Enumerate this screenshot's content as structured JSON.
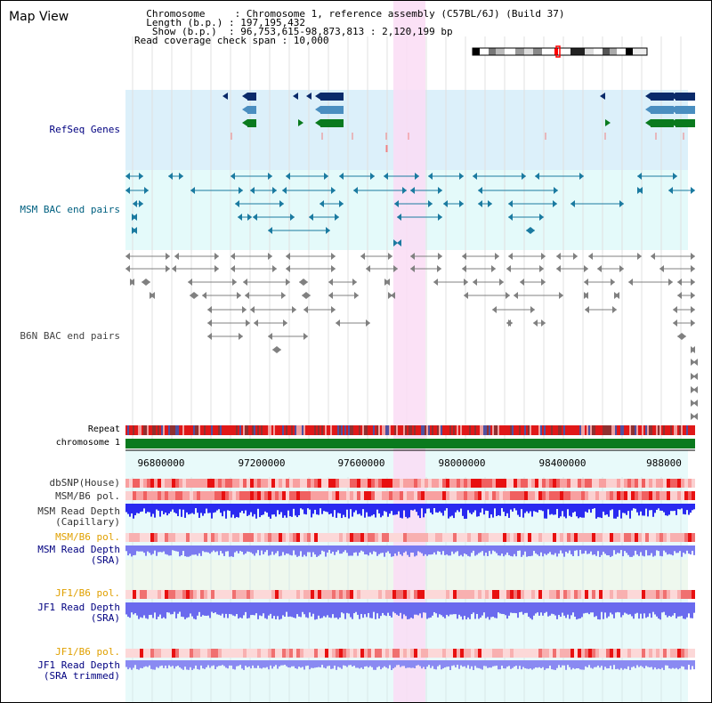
{
  "view": {
    "title": "Map View",
    "info_lines": [
      "  Chromosome     : Chromosome 1, reference assembly (C57BL/6J) (Build 37)",
      "  Length (b.p.) : 197,195,432",
      "   Show (b.p.)  : 96,753,615-98,873,813 : 2,120,199 bp",
      "Read coverage check span : 10,000"
    ]
  },
  "tracks": {
    "refseq": "RefSeq Genes",
    "msm_bac": "MSM BAC end pairs",
    "b6n_bac": "B6N BAC end pairs",
    "repeat": "Repeat",
    "chromosome": "chromosome 1",
    "dbsnp": "dbSNP(House)",
    "msm_b6_pol_1": "MSM/B6 pol.",
    "msm_depth_cap_1": "MSM Read Depth",
    "msm_depth_cap_2": "(Capillary)",
    "msm_b6_pol_2": "MSM/B6 pol.",
    "msm_depth_sra_1": "MSM Read Depth",
    "msm_depth_sra_2": "(SRA)",
    "jf1_b6_pol_1": "JF1/B6 pol.",
    "jf1_depth_sra_1": "JF1 Read Depth",
    "jf1_depth_sra_2": "(SRA)",
    "jf1_b6_pol_2": "JF1/B6 pol.",
    "jf1_depth_trim_1": "JF1 Read Depth",
    "jf1_depth_trim_2": "(SRA trimmed)"
  },
  "axis": {
    "ticks": [
      "96800000",
      "97200000",
      "97600000",
      "98000000",
      "98400000",
      "988000"
    ]
  },
  "colors": {
    "refseq_bg": "#dcf0fa",
    "msm_bg": "#e4fafa",
    "highlight": "#fadcf5",
    "gene_navy": "#0a2a6a",
    "gene_steel": "#4a8ec0",
    "gene_green": "#0a7a1e",
    "bac_teal": "#1a7aa0",
    "bac_gray": "#808080",
    "chromosome": "#0a7a1e",
    "depth_blue": "#2a2af0",
    "label_navy": "#000080",
    "label_teal": "#006080",
    "label_orange": "#e0a000"
  }
}
